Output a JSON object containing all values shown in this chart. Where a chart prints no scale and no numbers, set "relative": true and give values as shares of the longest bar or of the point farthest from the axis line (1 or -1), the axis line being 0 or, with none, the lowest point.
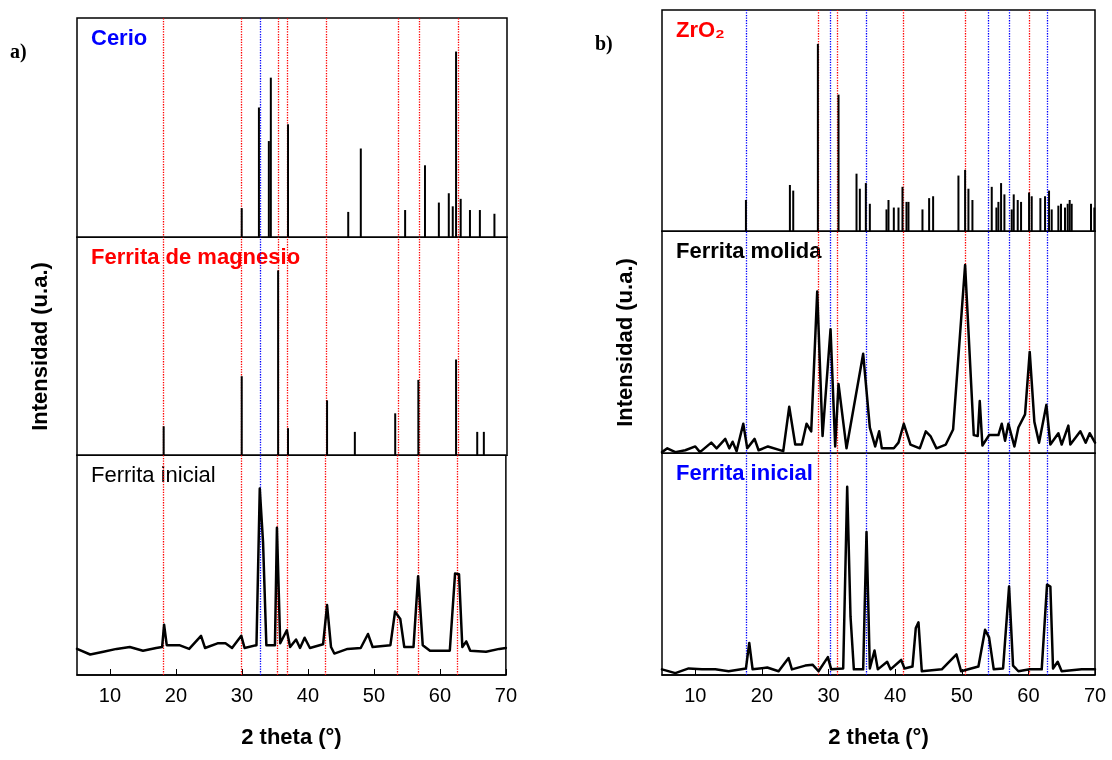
{
  "chart_data": [
    {
      "type": "bar",
      "title": "Cerio",
      "relative": true,
      "annotations": [
        "a)"
      ],
      "color": "#000000",
      "xlim": [
        5,
        70
      ],
      "xticks": [
        10,
        20,
        30,
        40,
        50,
        60,
        70
      ],
      "tick_labels": false,
      "x": [
        29.9,
        32.5,
        34.0,
        34.3,
        36.9,
        46.0,
        47.9,
        54.6,
        57.6,
        59.7,
        61.2,
        61.8,
        62.3,
        63.0,
        64.4,
        65.9,
        68.1
      ],
      "values": [
        0.16,
        0.7,
        0.52,
        0.86,
        0.61,
        0.14,
        0.48,
        0.15,
        0.39,
        0.19,
        0.24,
        0.17,
        1.0,
        0.21,
        0.15,
        0.15,
        0.13
      ],
      "ref_lines": [
        {
          "axis": "x",
          "value": 18.0,
          "color": "#ff0000",
          "line_style": "dotted"
        },
        {
          "axis": "x",
          "value": 29.9,
          "color": "#ff0000",
          "line_style": "dotted"
        },
        {
          "axis": "x",
          "value": 32.7,
          "color": "#0000ff",
          "line_style": "dotted"
        },
        {
          "axis": "x",
          "value": 35.4,
          "color": "#ff0000",
          "line_style": "dotted"
        },
        {
          "axis": "x",
          "value": 36.8,
          "color": "#ff0000",
          "line_style": "dotted"
        },
        {
          "axis": "x",
          "value": 42.7,
          "color": "#ff0000",
          "line_style": "dotted"
        },
        {
          "axis": "x",
          "value": 53.5,
          "color": "#ff0000",
          "line_style": "dotted"
        },
        {
          "axis": "x",
          "value": 56.7,
          "color": "#ff0000",
          "line_style": "dotted"
        },
        {
          "axis": "x",
          "value": 62.6,
          "color": "#ff0000",
          "line_style": "dotted"
        }
      ]
    },
    {
      "type": "bar",
      "title": "Ferrita de magnesio",
      "relative": true,
      "ylabel": "Intensidad (u.a.)",
      "color": "#000000",
      "xlim": [
        5,
        70
      ],
      "xticks": [
        10,
        20,
        30,
        40,
        50,
        60,
        70
      ],
      "tick_labels": false,
      "x": [
        18.1,
        29.9,
        35.4,
        36.9,
        42.8,
        47.0,
        53.1,
        56.6,
        62.3,
        65.5,
        66.5
      ],
      "values": [
        0.16,
        0.43,
        1.0,
        0.15,
        0.3,
        0.13,
        0.23,
        0.41,
        0.52,
        0.13,
        0.13
      ],
      "ref_lines": [
        {
          "axis": "x",
          "value": 18.0,
          "color": "#ff0000",
          "line_style": "dotted"
        },
        {
          "axis": "x",
          "value": 29.9,
          "color": "#ff0000",
          "line_style": "dotted"
        },
        {
          "axis": "x",
          "value": 32.7,
          "color": "#0000ff",
          "line_style": "dotted"
        },
        {
          "axis": "x",
          "value": 35.4,
          "color": "#ff0000",
          "line_style": "dotted"
        },
        {
          "axis": "x",
          "value": 36.8,
          "color": "#ff0000",
          "line_style": "dotted"
        },
        {
          "axis": "x",
          "value": 42.7,
          "color": "#ff0000",
          "line_style": "dotted"
        },
        {
          "axis": "x",
          "value": 53.5,
          "color": "#ff0000",
          "line_style": "dotted"
        },
        {
          "axis": "x",
          "value": 56.7,
          "color": "#ff0000",
          "line_style": "dotted"
        },
        {
          "axis": "x",
          "value": 62.6,
          "color": "#ff0000",
          "line_style": "dotted"
        }
      ]
    },
    {
      "type": "line",
      "title": "Ferrita inicial",
      "relative": true,
      "xlabel": "2 theta (°)",
      "marker": "none",
      "color": "#000000",
      "xlim": [
        5,
        70
      ],
      "xticks": [
        10,
        20,
        30,
        40,
        50,
        60,
        70
      ],
      "tick_labels": "x",
      "x": [
        5.0,
        7,
        9,
        11,
        13,
        15,
        17,
        17.9,
        18.2,
        18.6,
        20.5,
        22,
        23.8,
        24.4,
        26.3,
        27.5,
        28.5,
        29.9,
        30.4,
        32.2,
        32.7,
        33.2,
        33.7,
        35.0,
        35.3,
        35.8,
        36.8,
        37.3,
        38.2,
        38.8,
        39.5,
        40.3,
        42.3,
        42.9,
        43.5,
        44.0,
        46,
        48,
        49.1,
        49.8,
        52.5,
        53.2,
        54.0,
        54.6,
        56.0,
        56.7,
        57.4,
        58.5,
        61.5,
        62.3,
        62.9,
        63.4,
        64.0,
        64.6,
        67,
        69,
        70
      ],
      "values": [
        0.14,
        0.11,
        0.125,
        0.14,
        0.15,
        0.13,
        0.145,
        0.15,
        0.27,
        0.16,
        0.16,
        0.14,
        0.21,
        0.145,
        0.17,
        0.17,
        0.145,
        0.21,
        0.145,
        0.16,
        1.0,
        0.71,
        0.16,
        0.16,
        0.79,
        0.17,
        0.24,
        0.15,
        0.19,
        0.145,
        0.2,
        0.145,
        0.165,
        0.375,
        0.15,
        0.115,
        0.14,
        0.145,
        0.22,
        0.15,
        0.16,
        0.34,
        0.3,
        0.15,
        0.15,
        0.53,
        0.16,
        0.13,
        0.13,
        0.545,
        0.54,
        0.15,
        0.18,
        0.13,
        0.125,
        0.14,
        0.145
      ],
      "ref_lines": [
        {
          "axis": "x",
          "value": 18.0,
          "color": "#ff0000",
          "line_style": "dotted"
        },
        {
          "axis": "x",
          "value": 29.9,
          "color": "#ff0000",
          "line_style": "dotted"
        },
        {
          "axis": "x",
          "value": 32.7,
          "color": "#0000ff",
          "line_style": "dotted"
        },
        {
          "axis": "x",
          "value": 35.4,
          "color": "#ff0000",
          "line_style": "dotted"
        },
        {
          "axis": "x",
          "value": 36.8,
          "color": "#ff0000",
          "line_style": "dotted"
        },
        {
          "axis": "x",
          "value": 42.7,
          "color": "#ff0000",
          "line_style": "dotted"
        },
        {
          "axis": "x",
          "value": 53.5,
          "color": "#ff0000",
          "line_style": "dotted"
        },
        {
          "axis": "x",
          "value": 56.7,
          "color": "#ff0000",
          "line_style": "dotted"
        },
        {
          "axis": "x",
          "value": 62.6,
          "color": "#ff0000",
          "line_style": "dotted"
        }
      ]
    },
    {
      "type": "bar",
      "title": "ZrO₂",
      "relative": true,
      "annotations": [
        "b)"
      ],
      "color": "#000000",
      "xlim": [
        5,
        70
      ],
      "xticks": [
        10,
        20,
        30,
        40,
        50,
        60,
        70
      ],
      "tick_labels": false,
      "x": [
        17.6,
        24.2,
        24.7,
        28.4,
        31.5,
        34.2,
        34.7,
        35.6,
        36.2,
        38.7,
        39.0,
        39.8,
        40.5,
        41.1,
        41.7,
        42.0,
        44.1,
        45.1,
        45.7,
        49.5,
        50.5,
        51.0,
        51.6,
        54.5,
        55.2,
        55.5,
        55.9,
        56.4,
        57.5,
        57.8,
        58.4,
        58.9,
        60.1,
        60.5,
        61.8,
        62.5,
        63.1,
        63.5,
        64.5,
        64.9,
        65.5,
        65.9,
        66.2,
        66.5,
        69.4,
        69.9
      ],
      "values": [
        0.17,
        0.25,
        0.22,
        1.0,
        0.73,
        0.31,
        0.23,
        0.26,
        0.15,
        0.12,
        0.17,
        0.13,
        0.13,
        0.24,
        0.16,
        0.16,
        0.12,
        0.18,
        0.19,
        0.3,
        0.33,
        0.23,
        0.17,
        0.24,
        0.13,
        0.16,
        0.26,
        0.2,
        0.12,
        0.2,
        0.17,
        0.16,
        0.21,
        0.19,
        0.18,
        0.19,
        0.22,
        0.12,
        0.14,
        0.15,
        0.13,
        0.15,
        0.17,
        0.15,
        0.15,
        0.13
      ],
      "ref_lines": [
        {
          "axis": "x",
          "value": 17.7,
          "color": "#0000ff",
          "line_style": "dotted"
        },
        {
          "axis": "x",
          "value": 28.5,
          "color": "#ff0000",
          "line_style": "dotted"
        },
        {
          "axis": "x",
          "value": 30.2,
          "color": "#0000ff",
          "line_style": "dotted"
        },
        {
          "axis": "x",
          "value": 31.3,
          "color": "#ff0000",
          "line_style": "dotted"
        },
        {
          "axis": "x",
          "value": 35.6,
          "color": "#0000ff",
          "line_style": "dotted"
        },
        {
          "axis": "x",
          "value": 41.2,
          "color": "#ff0000",
          "line_style": "dotted"
        },
        {
          "axis": "x",
          "value": 50.5,
          "color": "#ff0000",
          "line_style": "dotted"
        },
        {
          "axis": "x",
          "value": 54.0,
          "color": "#0000ff",
          "line_style": "dotted"
        },
        {
          "axis": "x",
          "value": 57.1,
          "color": "#0000ff",
          "line_style": "dotted"
        },
        {
          "axis": "x",
          "value": 60.2,
          "color": "#ff0000",
          "line_style": "dotted"
        },
        {
          "axis": "x",
          "value": 62.9,
          "color": "#0000ff",
          "line_style": "dotted"
        }
      ]
    },
    {
      "type": "line",
      "title": "Ferrita molida",
      "relative": true,
      "ylabel": "Intensidad (u.a.)",
      "marker": "none",
      "color": "#000000",
      "xlim": [
        5,
        70
      ],
      "xticks": [
        10,
        20,
        30,
        40,
        50,
        60,
        70
      ],
      "tick_labels": false,
      "x": [
        5.0,
        5.8,
        7,
        8.5,
        10,
        10.7,
        12.4,
        13.2,
        14.5,
        15.1,
        15.6,
        16.2,
        17.2,
        17.8,
        18.9,
        19.5,
        20.9,
        23.2,
        24.1,
        25.0,
        26.0,
        26.7,
        27.4,
        28.3,
        29.1,
        30.3,
        31.0,
        31.5,
        32.7,
        35.2,
        36.2,
        37.0,
        37.6,
        38.0,
        39.8,
        40.5,
        41.3,
        42.3,
        43.7,
        44.6,
        45.3,
        46.2,
        47.6,
        48.7,
        50.5,
        51.8,
        52.4,
        52.7,
        53.1,
        54.1,
        55.5,
        56.0,
        56.5,
        57.0,
        57.9,
        58.5,
        59.5,
        60.2,
        60.9,
        61.6,
        62.7,
        63.3,
        64.5,
        65.0,
        66.0,
        66.3,
        67.8,
        68.6,
        69.2,
        70.0
      ],
      "values": [
        0.01,
        0.03,
        0.01,
        0.02,
        0.04,
        0.01,
        0.06,
        0.03,
        0.08,
        0.03,
        0.065,
        0.015,
        0.16,
        0.03,
        0.08,
        0.02,
        0.04,
        0.015,
        0.25,
        0.05,
        0.05,
        0.16,
        0.12,
        0.86,
        0.095,
        0.66,
        0.04,
        0.37,
        0.03,
        0.53,
        0.14,
        0.04,
        0.12,
        0.03,
        0.03,
        0.06,
        0.16,
        0.05,
        0.03,
        0.12,
        0.095,
        0.03,
        0.05,
        0.13,
        1.0,
        0.1,
        0.095,
        0.28,
        0.045,
        0.1,
        0.1,
        0.16,
        0.07,
        0.16,
        0.04,
        0.14,
        0.21,
        0.54,
        0.17,
        0.06,
        0.26,
        0.05,
        0.11,
        0.05,
        0.15,
        0.05,
        0.12,
        0.06,
        0.11,
        0.06
      ],
      "ref_lines": [
        {
          "axis": "x",
          "value": 17.7,
          "color": "#0000ff",
          "line_style": "dotted"
        },
        {
          "axis": "x",
          "value": 28.5,
          "color": "#ff0000",
          "line_style": "dotted"
        },
        {
          "axis": "x",
          "value": 30.2,
          "color": "#0000ff",
          "line_style": "dotted"
        },
        {
          "axis": "x",
          "value": 31.3,
          "color": "#ff0000",
          "line_style": "dotted"
        },
        {
          "axis": "x",
          "value": 35.6,
          "color": "#0000ff",
          "line_style": "dotted"
        },
        {
          "axis": "x",
          "value": 41.2,
          "color": "#ff0000",
          "line_style": "dotted"
        },
        {
          "axis": "x",
          "value": 50.5,
          "color": "#ff0000",
          "line_style": "dotted"
        },
        {
          "axis": "x",
          "value": 54.0,
          "color": "#0000ff",
          "line_style": "dotted"
        },
        {
          "axis": "x",
          "value": 57.1,
          "color": "#0000ff",
          "line_style": "dotted"
        },
        {
          "axis": "x",
          "value": 60.2,
          "color": "#ff0000",
          "line_style": "dotted"
        },
        {
          "axis": "x",
          "value": 62.9,
          "color": "#0000ff",
          "line_style": "dotted"
        }
      ]
    },
    {
      "type": "line",
      "title": "Ferrita inicial",
      "relative": true,
      "xlabel": "2 theta (°)",
      "marker": "none",
      "color": "#000000",
      "xlim": [
        5,
        70
      ],
      "xticks": [
        10,
        20,
        30,
        40,
        50,
        60,
        70
      ],
      "tick_labels": "x",
      "x": [
        5,
        7,
        9,
        11,
        13,
        15,
        17.6,
        18.1,
        18.6,
        20.8,
        22.5,
        24.0,
        24.5,
        26.5,
        27.6,
        28.5,
        29.9,
        30.4,
        32.2,
        32.8,
        33.3,
        33.8,
        35.2,
        35.7,
        36.2,
        36.9,
        37.4,
        38.8,
        39.3,
        40.9,
        41.4,
        42.6,
        43.1,
        43.5,
        44.0,
        47,
        49.2,
        49.9,
        52.5,
        53.5,
        54.1,
        54.8,
        56.2,
        57.1,
        57.7,
        58.5,
        60.2,
        62.0,
        62.8,
        63.3,
        63.7,
        64.4,
        65.0,
        68,
        70
      ],
      "values": [
        0.03,
        0.01,
        0.035,
        0.03,
        0.03,
        0.02,
        0.035,
        0.17,
        0.03,
        0.04,
        0.02,
        0.09,
        0.03,
        0.05,
        0.055,
        0.02,
        0.095,
        0.03,
        0.035,
        1.0,
        0.31,
        0.03,
        0.03,
        0.76,
        0.035,
        0.13,
        0.03,
        0.07,
        0.03,
        0.08,
        0.035,
        0.045,
        0.25,
        0.28,
        0.02,
        0.03,
        0.11,
        0.02,
        0.045,
        0.24,
        0.2,
        0.03,
        0.035,
        0.47,
        0.05,
        0.02,
        0.03,
        0.03,
        0.48,
        0.47,
        0.035,
        0.07,
        0.02,
        0.03,
        0.03
      ],
      "ref_lines": [
        {
          "axis": "x",
          "value": 17.7,
          "color": "#0000ff",
          "line_style": "dotted"
        },
        {
          "axis": "x",
          "value": 28.5,
          "color": "#ff0000",
          "line_style": "dotted"
        },
        {
          "axis": "x",
          "value": 30.2,
          "color": "#0000ff",
          "line_style": "dotted"
        },
        {
          "axis": "x",
          "value": 31.3,
          "color": "#ff0000",
          "line_style": "dotted"
        },
        {
          "axis": "x",
          "value": 35.6,
          "color": "#0000ff",
          "line_style": "dotted"
        },
        {
          "axis": "x",
          "value": 41.2,
          "color": "#ff0000",
          "line_style": "dotted"
        },
        {
          "axis": "x",
          "value": 50.5,
          "color": "#ff0000",
          "line_style": "dotted"
        },
        {
          "axis": "x",
          "value": 54.0,
          "color": "#0000ff",
          "line_style": "dotted"
        },
        {
          "axis": "x",
          "value": 57.1,
          "color": "#0000ff",
          "line_style": "dotted"
        },
        {
          "axis": "x",
          "value": 60.2,
          "color": "#ff0000",
          "line_style": "dotted"
        },
        {
          "axis": "x",
          "value": 62.9,
          "color": "#0000ff",
          "line_style": "dotted"
        }
      ]
    }
  ]
}
